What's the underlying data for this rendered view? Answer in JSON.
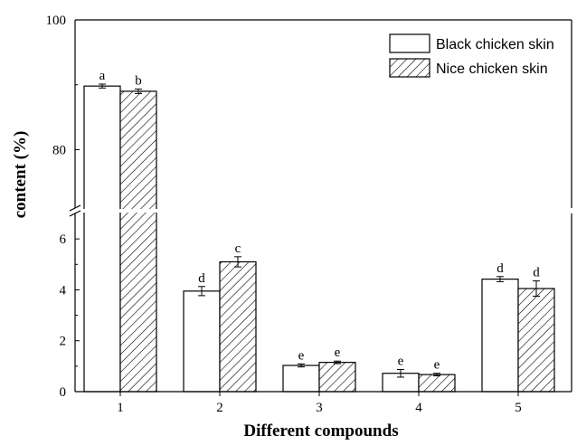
{
  "chart_data": {
    "type": "bar",
    "xlabel": "Different compounds",
    "ylabel": "content (%)",
    "categories": [
      "1",
      "2",
      "3",
      "4",
      "5"
    ],
    "y_axis_break": true,
    "y_lower_range": [
      0,
      7
    ],
    "y_upper_range": [
      71,
      100
    ],
    "y_lower_ticks": [
      0,
      2,
      4,
      6
    ],
    "y_upper_ticks": [
      80,
      100
    ],
    "legend_position": "top-right",
    "series": [
      {
        "name": "Black chicken skin",
        "pattern": "solid-white",
        "values": [
          89.8,
          3.95,
          1.03,
          0.72,
          4.42
        ],
        "errors": [
          0.3,
          0.18,
          0.06,
          0.15,
          0.1
        ],
        "significance": [
          "a",
          "d",
          "e",
          "e",
          "d"
        ]
      },
      {
        "name": "Nice chicken skin",
        "pattern": "diagonal-hatch",
        "values": [
          89.0,
          5.1,
          1.15,
          0.67,
          4.05
        ],
        "errors": [
          0.35,
          0.2,
          0.05,
          0.05,
          0.3
        ],
        "significance": [
          "b",
          "c",
          "e",
          "e",
          "d"
        ]
      }
    ]
  }
}
